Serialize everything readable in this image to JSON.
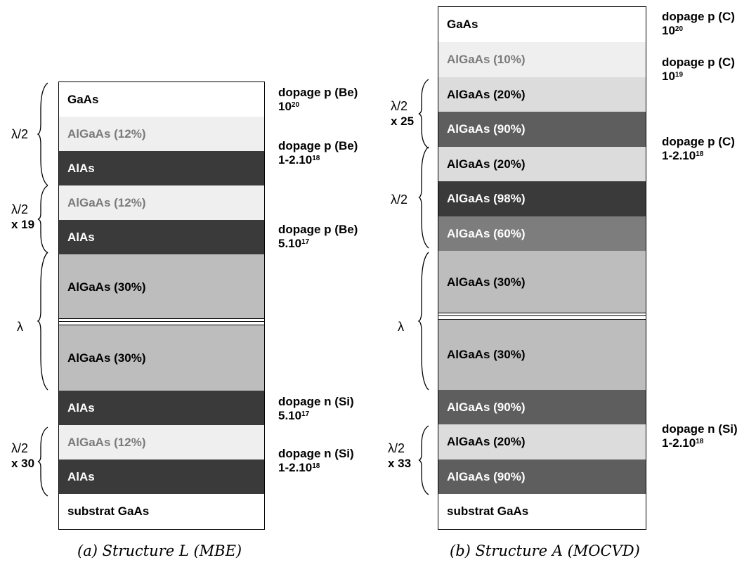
{
  "structure_l": {
    "caption": "(a) Structure L (MBE)",
    "layers": [
      {
        "label": "GaAs",
        "fill": "#ffffff",
        "text_color": "#000000"
      },
      {
        "label": "AlGaAs (12%)",
        "fill": "#efefef",
        "text_color": "#7a7a7a"
      },
      {
        "label": "AlAs",
        "fill": "#3a3a3a",
        "text_color": "#ffffff"
      },
      {
        "label": "AlGaAs (12%)",
        "fill": "#efefef",
        "text_color": "#7a7a7a"
      },
      {
        "label": "AlAs",
        "fill": "#3a3a3a",
        "text_color": "#ffffff"
      },
      {
        "label": "AlGaAs (30%)",
        "fill": "#bdbdbd",
        "text_color": "#000000"
      },
      {
        "label": "AlGaAs (30%)",
        "fill": "#bdbdbd",
        "text_color": "#000000"
      },
      {
        "label": "AlAs",
        "fill": "#3a3a3a",
        "text_color": "#ffffff"
      },
      {
        "label": "AlGaAs (12%)",
        "fill": "#efefef",
        "text_color": "#7a7a7a"
      },
      {
        "label": "AlAs",
        "fill": "#3a3a3a",
        "text_color": "#ffffff"
      },
      {
        "label": "substrat GaAs",
        "fill": "#ffffff",
        "text_color": "#000000"
      }
    ],
    "dopings": [
      {
        "line1": "dopage p (Be)",
        "base": "10",
        "exp": "20"
      },
      {
        "line1": "dopage p (Be)",
        "base": "1-2.10",
        "exp": "18"
      },
      {
        "line1": "dopage p (Be)",
        "base": "5.10",
        "exp": "17"
      },
      {
        "line1": "dopage n (Si)",
        "base": "5.10",
        "exp": "17"
      },
      {
        "line1": "dopage n (Si)",
        "base": "1-2.10",
        "exp": "18"
      }
    ],
    "brace_labels": [
      {
        "line1": "λ/2",
        "line2": ""
      },
      {
        "line1": "λ/2",
        "line2": "x 19"
      },
      {
        "line1": "λ",
        "line2": ""
      },
      {
        "line1": "λ/2",
        "line2": "x 30"
      }
    ]
  },
  "structure_a": {
    "caption": "(b) Structure A (MOCVD)",
    "layers": [
      {
        "label": "GaAs",
        "fill": "#ffffff",
        "text_color": "#000000"
      },
      {
        "label": "AlGaAs (10%)",
        "fill": "#efefef",
        "text_color": "#7a7a7a"
      },
      {
        "label": "AlGaAs (20%)",
        "fill": "#dcdcdc",
        "text_color": "#000000"
      },
      {
        "label": "AlGaAs (90%)",
        "fill": "#5e5e5e",
        "text_color": "#ffffff"
      },
      {
        "label": "AlGaAs (20%)",
        "fill": "#dcdcdc",
        "text_color": "#000000"
      },
      {
        "label": "AlGaAs (98%)",
        "fill": "#3a3a3a",
        "text_color": "#ffffff"
      },
      {
        "label": "AlGaAs (60%)",
        "fill": "#7d7d7d",
        "text_color": "#ffffff"
      },
      {
        "label": "AlGaAs (30%)",
        "fill": "#bdbdbd",
        "text_color": "#000000"
      },
      {
        "label": "AlGaAs (30%)",
        "fill": "#bdbdbd",
        "text_color": "#000000"
      },
      {
        "label": "AlGaAs (90%)",
        "fill": "#5e5e5e",
        "text_color": "#ffffff"
      },
      {
        "label": "AlGaAs (20%)",
        "fill": "#dcdcdc",
        "text_color": "#000000"
      },
      {
        "label": "AlGaAs (90%)",
        "fill": "#5e5e5e",
        "text_color": "#ffffff"
      },
      {
        "label": "substrat GaAs",
        "fill": "#ffffff",
        "text_color": "#000000"
      }
    ],
    "dopings": [
      {
        "line1": "dopage p (C)",
        "base": "10",
        "exp": "20"
      },
      {
        "line1": "dopage p (C)",
        "base": "10",
        "exp": "19"
      },
      {
        "line1": "dopage p (C)",
        "base": "1-2.10",
        "exp": "18"
      },
      {
        "line1": "dopage n (Si)",
        "base": "1-2.10",
        "exp": "18"
      }
    ],
    "brace_labels": [
      {
        "line1": "λ/2",
        "line2": "x 25"
      },
      {
        "line1": "λ/2",
        "line2": ""
      },
      {
        "line1": "λ",
        "line2": ""
      },
      {
        "line1": "λ/2",
        "line2": "x 33"
      }
    ]
  }
}
